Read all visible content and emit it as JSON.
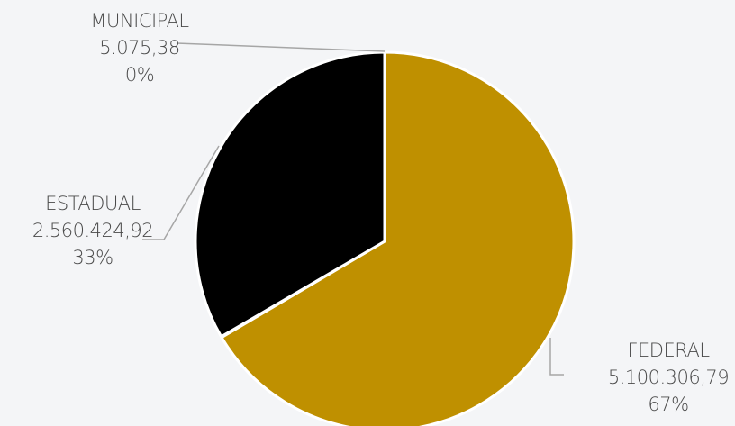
{
  "chart_data": {
    "type": "pie",
    "title": "",
    "legend": "none",
    "series": [
      {
        "name": "FEDERAL",
        "value": 5100306.79,
        "value_label": "5.100.306,79",
        "percent_label": "67%",
        "color": "#bf9000"
      },
      {
        "name": "MUNICIPAL",
        "value": 5075.38,
        "value_label": "5.075,38",
        "percent_label": "0%",
        "color": "#ffffff"
      },
      {
        "name": "ESTADUAL",
        "value": 2560424.92,
        "value_label": "2.560.424,92",
        "percent_label": "33%",
        "color": "#000000"
      }
    ]
  }
}
